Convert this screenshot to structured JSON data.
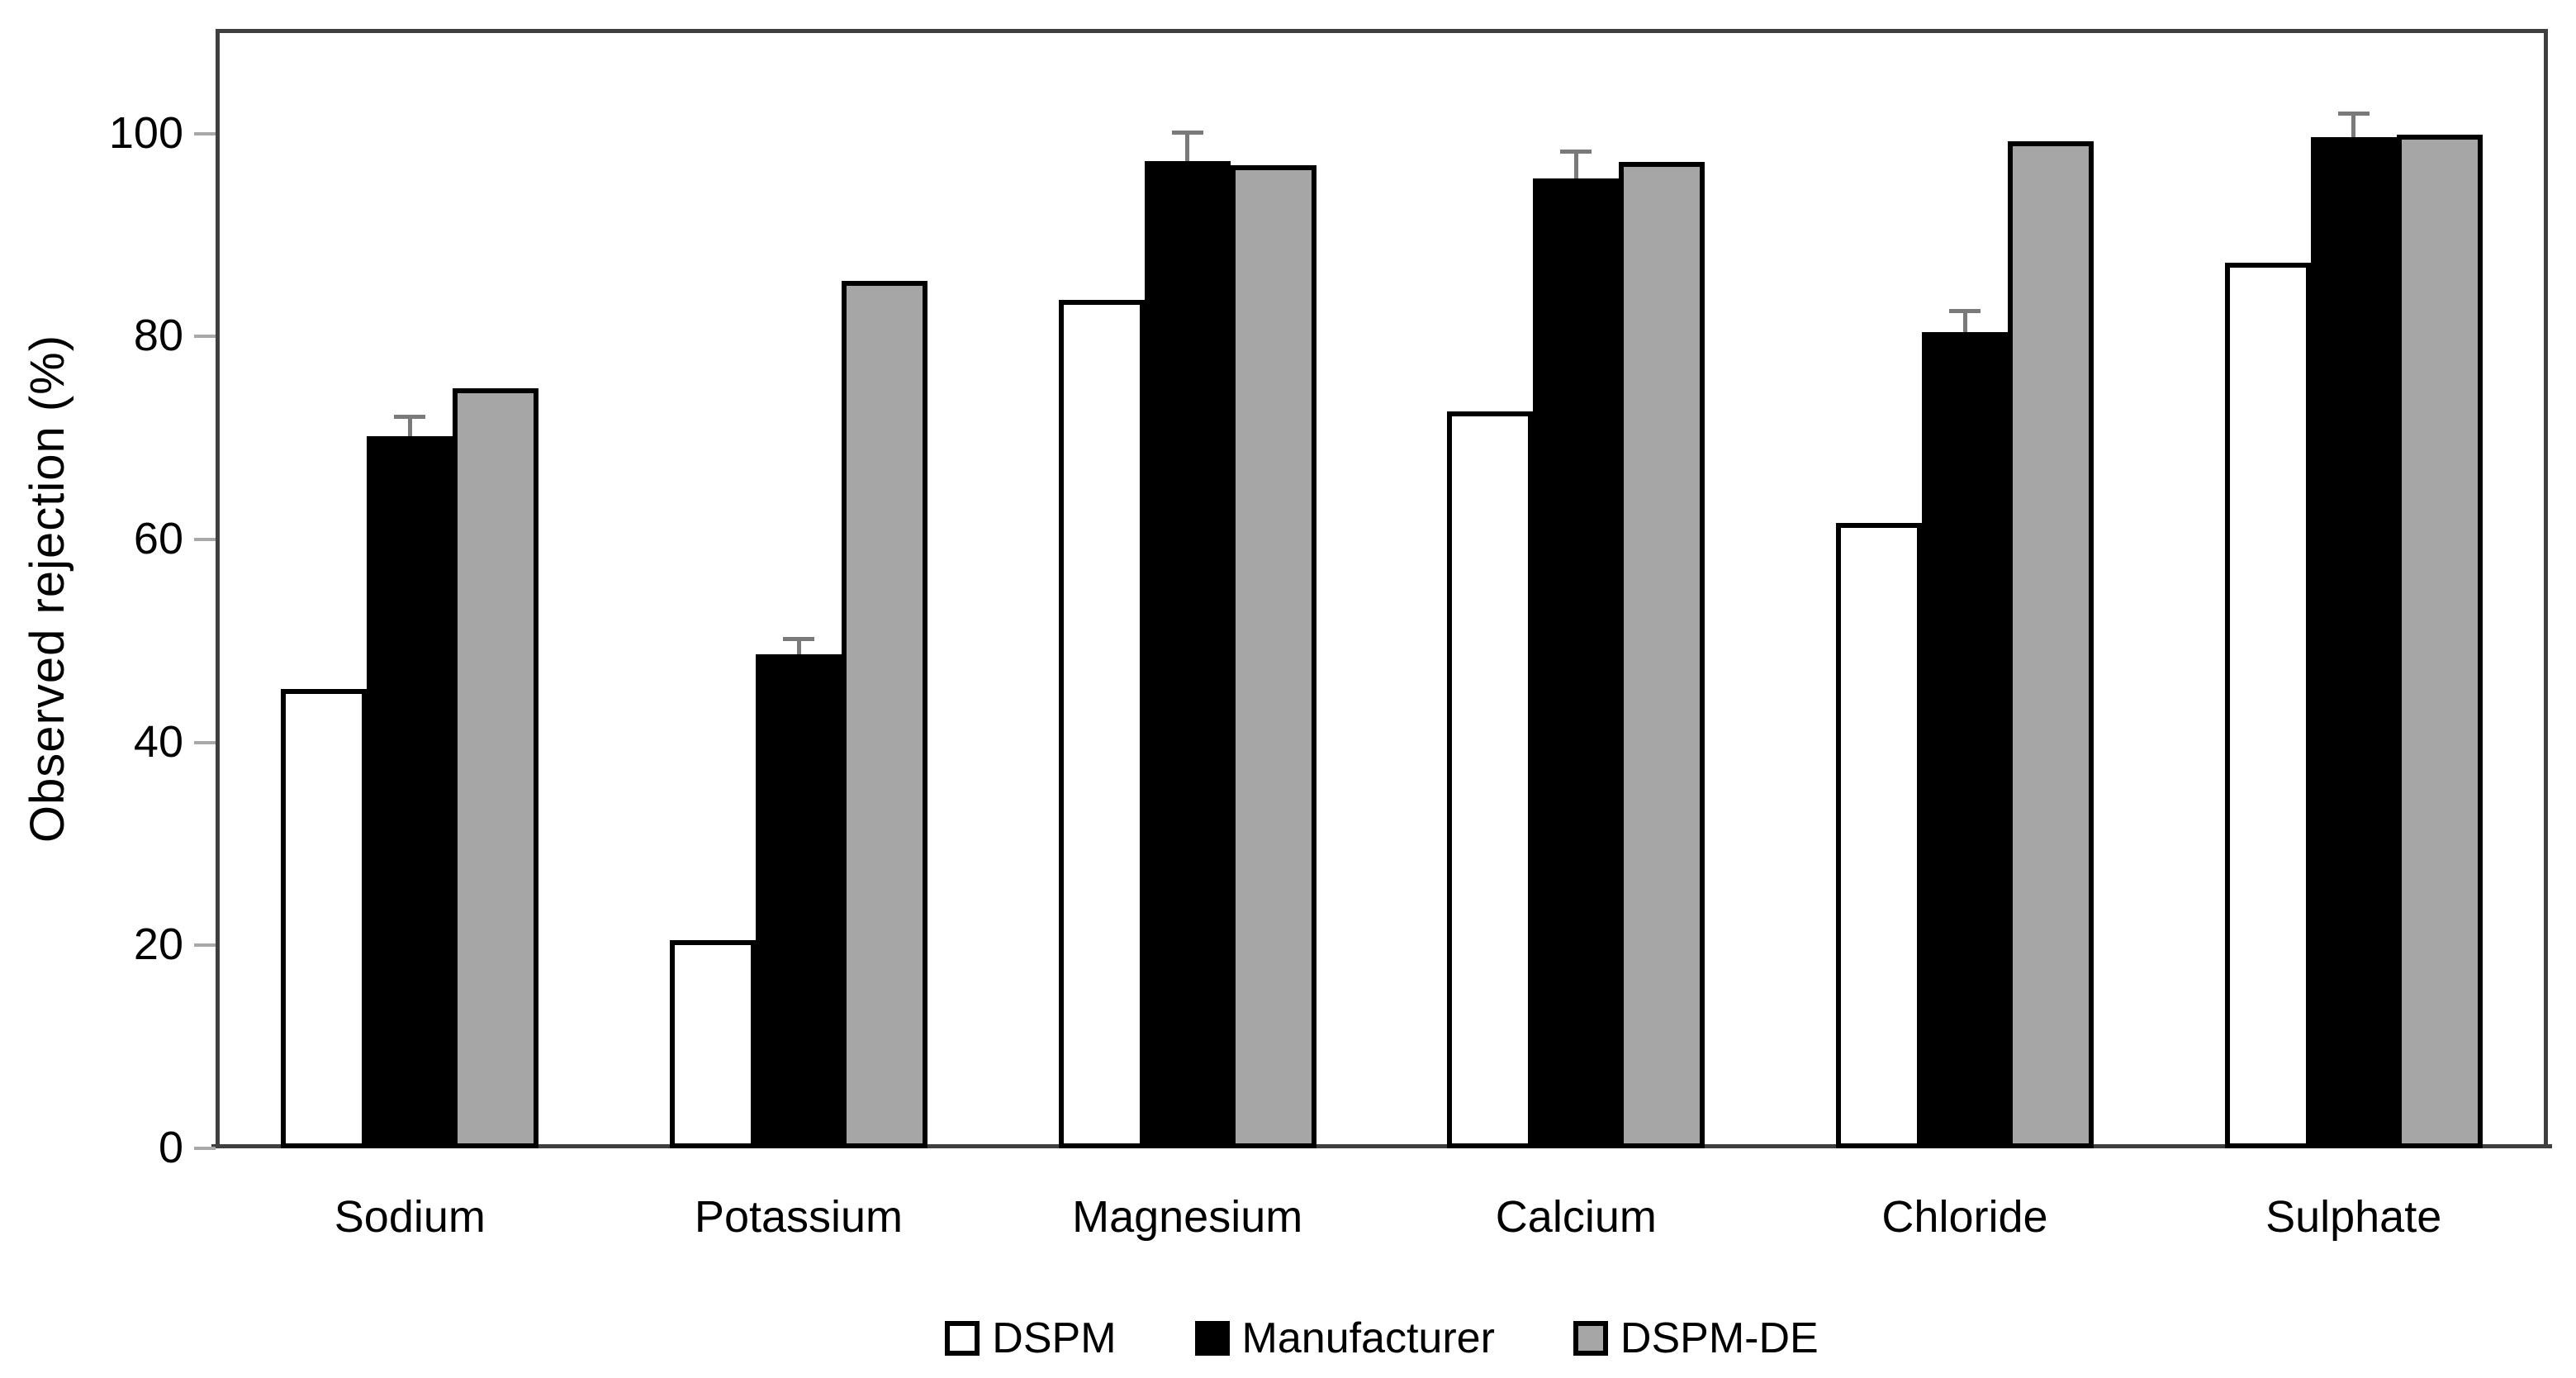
{
  "chart_data": {
    "type": "bar",
    "title": "",
    "categories": [
      "Sodium",
      "Potassium",
      "Magnesium",
      "Calcium",
      "Chloride",
      "Sulphate"
    ],
    "series": [
      {
        "name": "DSPM",
        "values": [
          45.3,
          20.5,
          83.6,
          72.6,
          61.6,
          87.3
        ],
        "fill": "#ffffff",
        "border": "#000000"
      },
      {
        "name": "Manufacturer",
        "values": [
          70.2,
          48.7,
          97.3,
          95.6,
          80.4,
          99.6
        ],
        "error_plus": [
          2.1,
          1.7,
          3.0,
          2.8,
          2.3,
          2.6
        ],
        "fill": "#000000",
        "border": "#000000"
      },
      {
        "name": "DSPM-DE",
        "values": [
          74.9,
          85.5,
          96.9,
          97.2,
          99.2,
          99.9
        ],
        "fill": "#a6a6a6",
        "border": "#000000"
      }
    ],
    "xlabel": "",
    "ylabel": "Observed rejection (%)",
    "ylim": [
      0,
      110.3
    ],
    "yticks": [
      0,
      20,
      40,
      60,
      80,
      100
    ],
    "grid": false,
    "legend_position": "bottom",
    "colors": {
      "axis": "#3f3f3f",
      "tick": "#a8a8a8",
      "error_bar": "#7a7a7a",
      "text": "#000000",
      "background": "#ffffff"
    }
  }
}
